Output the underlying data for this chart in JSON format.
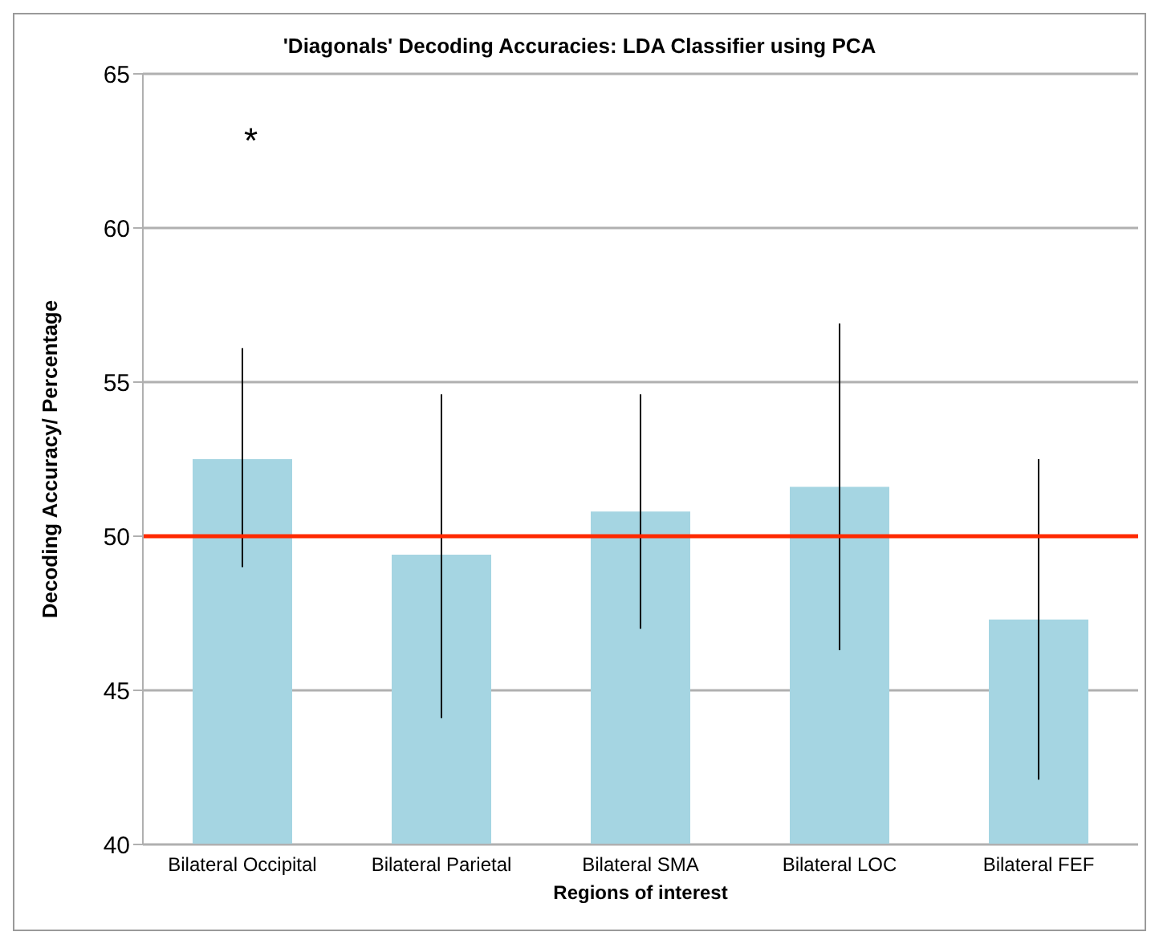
{
  "chart_data": {
    "type": "bar",
    "title": "'Diagonals' Decoding Accuracies: LDA Classifier using PCA",
    "xlabel": "Regions of interest",
    "ylabel": "Decoding Accuracy/ Percentage",
    "categories": [
      "Bilateral Occipital",
      "Bilateral Parietal",
      "Bilateral SMA",
      "Bilateral LOC",
      "Bilateral FEF"
    ],
    "values": [
      52.5,
      49.4,
      50.8,
      51.6,
      47.3
    ],
    "color": "#a5d5e2",
    "errors": [
      [
        49.0,
        56.1
      ],
      [
        44.1,
        54.6
      ],
      [
        47.0,
        54.6
      ],
      [
        46.3,
        56.9
      ],
      [
        42.1,
        52.5
      ]
    ],
    "ylim": [
      40,
      65
    ],
    "yticks": [
      40,
      45,
      50,
      55,
      60,
      65
    ],
    "grid": "y",
    "ref_lines": [
      {
        "axis": "y",
        "value": 50,
        "label": null,
        "color": "#ff2a00"
      }
    ],
    "annotations": [
      "*"
    ]
  }
}
